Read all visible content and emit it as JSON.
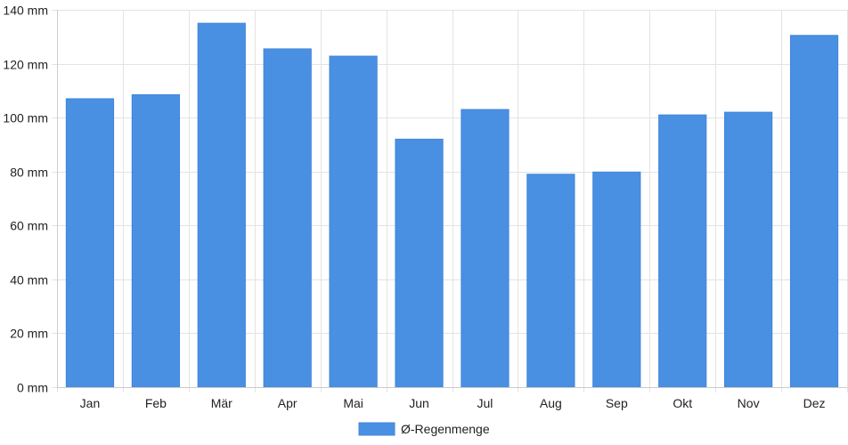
{
  "chart_data": {
    "type": "bar",
    "categories": [
      "Jan",
      "Feb",
      "Mär",
      "Apr",
      "Mai",
      "Jun",
      "Jul",
      "Aug",
      "Sep",
      "Okt",
      "Nov",
      "Dez"
    ],
    "series": [
      {
        "name": "Ø-Regenmenge",
        "values": [
          107,
          108.5,
          135,
          125.5,
          122.8,
          92,
          103,
          79,
          79.8,
          101,
          102,
          130.5
        ],
        "color": "#4a90e2"
      }
    ],
    "ylim": [
      0,
      140
    ],
    "yticks": [
      0,
      20,
      40,
      60,
      80,
      100,
      120,
      140
    ],
    "yunit": "mm",
    "grid": true,
    "legend_position": "bottom-center"
  }
}
